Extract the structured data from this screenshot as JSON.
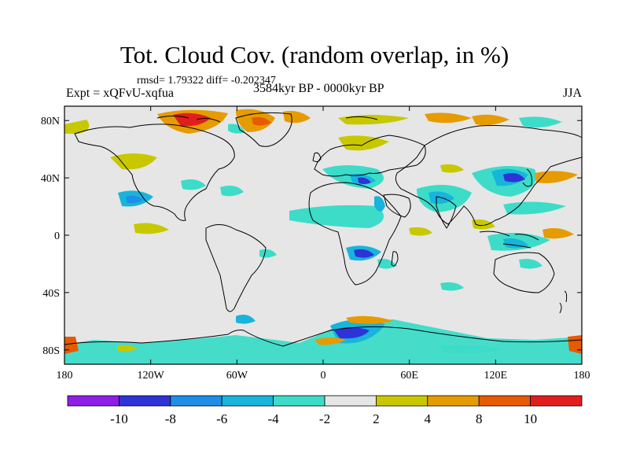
{
  "header": {
    "title": "Tot. Cloud Cov. (random overlap, in %)",
    "stats": "rmsd= 1.79322 diff= -0.202347",
    "experiment": "Expt = xQFvU-xqfua",
    "period": "3584kyr BP - 0000kyr BP",
    "season": "JJA"
  },
  "axes": {
    "lat_labels": [
      {
        "value": 80,
        "label": "80N"
      },
      {
        "value": 40,
        "label": "40N"
      },
      {
        "value": 0,
        "label": "0"
      },
      {
        "value": -40,
        "label": "40S"
      },
      {
        "value": -80,
        "label": "80S"
      }
    ],
    "lon_labels": [
      {
        "value": -180,
        "label": "180"
      },
      {
        "value": -120,
        "label": "120W"
      },
      {
        "value": -60,
        "label": "60W"
      },
      {
        "value": 0,
        "label": "0"
      },
      {
        "value": 60,
        "label": "60E"
      },
      {
        "value": 120,
        "label": "120E"
      },
      {
        "value": 180,
        "label": "180"
      }
    ],
    "lon_range": [
      -180,
      180
    ],
    "lat_range": [
      -90,
      90
    ]
  },
  "colorbar": {
    "colors": [
      "#8f1ee6",
      "#2d33d6",
      "#1e8ee6",
      "#17b4dc",
      "#3cdcc8",
      "#e6e6e6",
      "#c8c800",
      "#e69b00",
      "#e65a00",
      "#e01e1e"
    ],
    "labels": [
      "-10",
      "-8",
      "-6",
      "-4",
      "-2",
      "2",
      "4",
      "8",
      "10"
    ]
  },
  "colors": {
    "no_change": "#e6e6e6",
    "coastline": "#000000"
  }
}
